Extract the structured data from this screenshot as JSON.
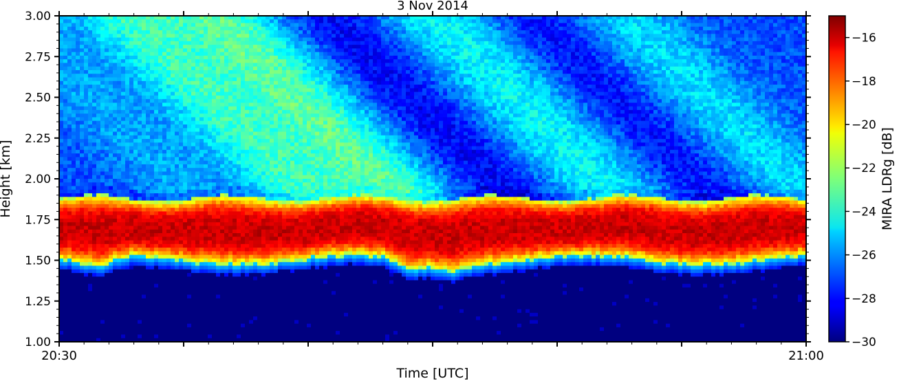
{
  "chart_data": {
    "type": "heatmap",
    "title": "3 Nov 2014",
    "xlabel": "Time [UTC]",
    "ylabel": "Height [km]",
    "x_ticks": [
      "20:30",
      "21:00"
    ],
    "y_ticks": [
      "1.00",
      "1.25",
      "1.50",
      "1.75",
      "2.00",
      "2.25",
      "2.50",
      "2.75",
      "3.00"
    ],
    "xlim": [
      0,
      30
    ],
    "ylim": [
      1.0,
      3.0
    ],
    "colorbar": {
      "label": "MIRA LDRg [dB]",
      "ticks": [
        "−30",
        "−28",
        "−26",
        "−24",
        "−22",
        "−20",
        "−18",
        "−16"
      ],
      "range": [
        -30,
        -15
      ],
      "colormap": "jet"
    },
    "layers": [
      {
        "height_range": [
          1.0,
          1.5
        ],
        "value": -30
      },
      {
        "height_range": [
          1.5,
          1.88
        ],
        "value": -15.5
      },
      {
        "height_range": [
          1.88,
          3.0
        ],
        "value": -27
      }
    ]
  }
}
